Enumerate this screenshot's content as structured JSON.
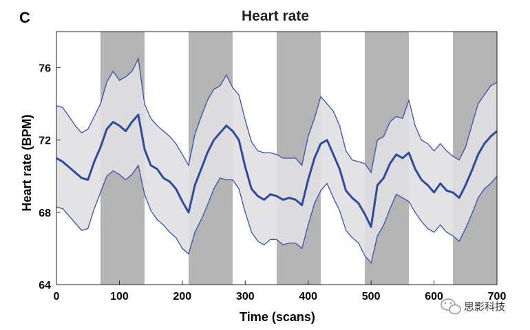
{
  "chart_data": {
    "type": "line",
    "panel_label": "C",
    "title": "Heart rate",
    "xlabel": "Time (scans)",
    "ylabel": "Heart rate (BPM)",
    "xlim": [
      0,
      700
    ],
    "ylim": [
      64,
      78
    ],
    "xticks": [
      0,
      100,
      200,
      300,
      400,
      500,
      600,
      700
    ],
    "yticks": [
      64,
      68,
      72,
      76
    ],
    "grid": false,
    "shaded_blocks": [
      [
        70,
        140
      ],
      [
        210,
        280
      ],
      [
        350,
        420
      ],
      [
        490,
        560
      ],
      [
        630,
        700
      ]
    ],
    "colors": {
      "block": "#b4b4b4",
      "band_fill": "#e0e0e2",
      "line": "#2e4a9c",
      "band_edge": "#3a50a8",
      "watermark_icon": "#9a9a9a"
    },
    "series": [
      {
        "role": "mean",
        "x": [
          0,
          10,
          20,
          30,
          40,
          50,
          60,
          70,
          80,
          90,
          100,
          110,
          120,
          130,
          140,
          150,
          160,
          170,
          180,
          190,
          200,
          210,
          220,
          230,
          240,
          250,
          260,
          270,
          280,
          290,
          300,
          310,
          320,
          330,
          340,
          350,
          360,
          370,
          380,
          390,
          400,
          410,
          420,
          430,
          440,
          450,
          460,
          470,
          480,
          490,
          500,
          510,
          520,
          530,
          540,
          550,
          560,
          570,
          580,
          590,
          600,
          610,
          620,
          630,
          640,
          650,
          660,
          670,
          680,
          690,
          700
        ],
        "values": [
          71.0,
          70.8,
          70.5,
          70.2,
          69.9,
          69.8,
          70.8,
          71.6,
          72.6,
          73.0,
          72.8,
          72.5,
          73.0,
          73.4,
          71.5,
          70.6,
          70.4,
          69.9,
          69.7,
          69.3,
          68.6,
          68.0,
          69.5,
          70.4,
          71.3,
          72.0,
          72.4,
          72.8,
          72.5,
          72.0,
          70.5,
          69.3,
          68.9,
          68.7,
          69.0,
          68.9,
          68.7,
          68.8,
          68.7,
          68.4,
          69.8,
          71.0,
          71.8,
          72.0,
          71.2,
          70.4,
          69.2,
          68.8,
          68.5,
          67.9,
          67.2,
          69.5,
          69.9,
          70.7,
          71.2,
          71.0,
          71.3,
          70.4,
          69.8,
          69.5,
          69.1,
          69.6,
          69.2,
          69.1,
          68.8,
          69.5,
          70.3,
          71.2,
          71.8,
          72.2,
          72.5
        ]
      },
      {
        "role": "upper_bound",
        "x": [
          0,
          10,
          20,
          30,
          40,
          50,
          60,
          70,
          80,
          90,
          100,
          110,
          120,
          130,
          140,
          150,
          160,
          170,
          180,
          190,
          200,
          210,
          220,
          230,
          240,
          250,
          260,
          270,
          280,
          290,
          300,
          310,
          320,
          330,
          340,
          350,
          360,
          370,
          380,
          390,
          400,
          410,
          420,
          430,
          440,
          450,
          460,
          470,
          480,
          490,
          500,
          510,
          520,
          530,
          540,
          550,
          560,
          570,
          580,
          590,
          600,
          610,
          620,
          630,
          640,
          650,
          660,
          670,
          680,
          690,
          700
        ],
        "values": [
          73.9,
          73.8,
          73.3,
          72.8,
          72.4,
          72.6,
          73.3,
          74.0,
          75.2,
          75.8,
          75.3,
          75.5,
          75.8,
          76.5,
          74.0,
          73.2,
          72.8,
          72.5,
          72.2,
          71.8,
          71.2,
          70.6,
          72.3,
          73.3,
          74.2,
          74.8,
          75.0,
          75.6,
          74.9,
          74.5,
          73.1,
          71.9,
          71.4,
          71.3,
          71.3,
          71.2,
          71.0,
          71.0,
          71.0,
          70.6,
          72.2,
          73.2,
          74.4,
          74.0,
          73.6,
          72.8,
          71.4,
          70.9,
          70.8,
          70.7,
          70.2,
          72.0,
          72.2,
          73.0,
          73.3,
          73.2,
          74.2,
          72.8,
          72.0,
          71.8,
          71.4,
          71.8,
          71.4,
          71.1,
          70.9,
          71.6,
          72.8,
          74.0,
          74.5,
          75.0,
          75.2
        ]
      },
      {
        "role": "lower_bound",
        "x": [
          0,
          10,
          20,
          30,
          40,
          50,
          60,
          70,
          80,
          90,
          100,
          110,
          120,
          130,
          140,
          150,
          160,
          170,
          180,
          190,
          200,
          210,
          220,
          230,
          240,
          250,
          260,
          270,
          280,
          290,
          300,
          310,
          320,
          330,
          340,
          350,
          360,
          370,
          380,
          390,
          400,
          410,
          420,
          430,
          440,
          450,
          460,
          470,
          480,
          490,
          500,
          510,
          520,
          530,
          540,
          550,
          560,
          570,
          580,
          590,
          600,
          610,
          620,
          630,
          640,
          650,
          660,
          670,
          680,
          690,
          700
        ],
        "values": [
          68.3,
          68.2,
          67.8,
          67.4,
          67.0,
          67.1,
          68.2,
          69.1,
          70.0,
          70.3,
          70.1,
          69.8,
          70.1,
          70.6,
          69.0,
          68.1,
          67.6,
          67.3,
          66.9,
          66.6,
          66.0,
          65.7,
          66.9,
          67.6,
          68.4,
          69.3,
          69.9,
          69.8,
          69.8,
          69.3,
          68.0,
          66.9,
          66.4,
          66.2,
          66.5,
          66.5,
          66.2,
          66.3,
          66.3,
          66.0,
          67.3,
          68.5,
          69.2,
          69.6,
          68.8,
          68.1,
          67.0,
          66.6,
          66.3,
          65.6,
          65.2,
          66.7,
          67.3,
          68.2,
          69.0,
          68.8,
          68.6,
          68.0,
          67.5,
          67.1,
          66.9,
          67.3,
          66.9,
          66.7,
          66.4,
          67.1,
          67.9,
          68.8,
          69.3,
          69.6,
          70.0
        ]
      }
    ]
  },
  "watermark": {
    "text": "思影科技",
    "icon": "wechat-icon"
  }
}
